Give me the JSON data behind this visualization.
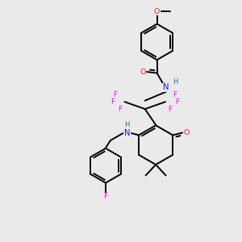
{
  "background_color": "#eaeaea",
  "atom_colors": {
    "C": "#000000",
    "N": "#1010ff",
    "O": "#ff2020",
    "F": "#ff00ff",
    "H": "#008080"
  },
  "bond_color": "#000000",
  "bond_width": 1.4
}
